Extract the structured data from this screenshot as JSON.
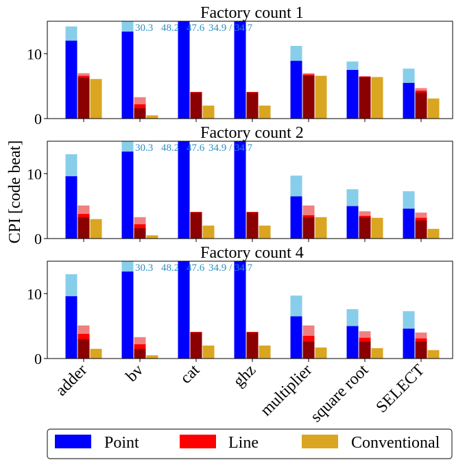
{
  "chart_data": {
    "type": "bar",
    "ylabel": "CPI [code beat]",
    "ylim": [
      0,
      15
    ],
    "yticks": [
      0,
      10
    ],
    "categories": [
      "adder",
      "bv",
      "cat",
      "ghz",
      "multiplier",
      "square root",
      "SELECT"
    ],
    "legend": {
      "placement": "bottom",
      "entries": [
        {
          "name": "Point",
          "color": "#0000ff"
        },
        {
          "name": "Line",
          "color": "#ff0000"
        },
        {
          "name": "Conventional",
          "color": "#daa520"
        }
      ]
    },
    "colors": {
      "point": "#0000ff",
      "point_light": "#87ceeb",
      "line": "#8b0000",
      "line_mid": "#ff0000",
      "line_light": "#f08080",
      "conventional": "#daa520",
      "annotation": "#2a8fc4"
    },
    "panels": [
      {
        "title": "Factory count 1",
        "annotations": [
          {
            "category": "bv",
            "text": "30.3"
          },
          {
            "category": "bv",
            "text": "48.2"
          },
          {
            "category": "cat",
            "text": "47.6"
          },
          {
            "category": "ghz",
            "text": "34.9 / 34.7"
          }
        ],
        "series": [
          {
            "name": "Point",
            "values": [
              12.0,
              13.4,
              15.0,
              15.0,
              8.9,
              7.5,
              5.5
            ],
            "upper": [
              14.2,
              15.0,
              15.0,
              15.0,
              11.2,
              8.8,
              7.7
            ]
          },
          {
            "name": "Line",
            "values": [
              6.3,
              1.6,
              4.0,
              4.0,
              6.6,
              6.4,
              4.0
            ],
            "mid": [
              6.6,
              2.2,
              4.1,
              4.1,
              6.8,
              6.5,
              4.3
            ],
            "upper": [
              7.0,
              3.3,
              4.1,
              4.1,
              7.0,
              6.5,
              4.7
            ]
          },
          {
            "name": "Conventional",
            "values": [
              6.1,
              0.5,
              2.0,
              2.0,
              6.6,
              6.4,
              3.1
            ]
          }
        ]
      },
      {
        "title": "Factory count 2",
        "annotations": [
          {
            "category": "bv",
            "text": "30.3"
          },
          {
            "category": "bv",
            "text": "48.2"
          },
          {
            "category": "cat",
            "text": "47.6"
          },
          {
            "category": "ghz",
            "text": "34.9 / 34.7"
          }
        ],
        "series": [
          {
            "name": "Point",
            "values": [
              9.6,
              13.4,
              15.0,
              15.0,
              6.5,
              5.0,
              4.6
            ],
            "upper": [
              13.0,
              15.0,
              15.0,
              15.0,
              9.7,
              7.6,
              7.3
            ]
          },
          {
            "name": "Line",
            "values": [
              3.3,
              1.6,
              4.0,
              4.0,
              3.3,
              3.3,
              2.8
            ],
            "mid": [
              3.8,
              2.2,
              4.1,
              4.1,
              3.6,
              3.5,
              3.2
            ],
            "upper": [
              5.1,
              3.3,
              4.1,
              4.1,
              5.1,
              4.2,
              4.0
            ]
          },
          {
            "name": "Conventional",
            "values": [
              3.0,
              0.5,
              2.0,
              2.0,
              3.3,
              3.2,
              1.5
            ]
          }
        ]
      },
      {
        "title": "Factory count 4",
        "annotations": [
          {
            "category": "bv",
            "text": "30.3"
          },
          {
            "category": "bv",
            "text": "48.2"
          },
          {
            "category": "cat",
            "text": "47.6"
          },
          {
            "category": "ghz",
            "text": "34.9 / 34.7"
          }
        ],
        "series": [
          {
            "name": "Point",
            "values": [
              9.6,
              13.4,
              15.0,
              15.0,
              6.5,
              5.0,
              4.6
            ],
            "upper": [
              13.0,
              15.0,
              15.0,
              15.0,
              9.7,
              7.6,
              7.3
            ]
          },
          {
            "name": "Line",
            "values": [
              3.0,
              1.5,
              4.0,
              4.0,
              2.6,
              2.6,
              2.6
            ],
            "mid": [
              3.8,
              2.2,
              4.1,
              4.1,
              3.5,
              3.2,
              3.1
            ],
            "upper": [
              5.1,
              3.3,
              4.1,
              4.1,
              5.1,
              4.2,
              4.0
            ]
          },
          {
            "name": "Conventional",
            "values": [
              1.5,
              0.5,
              2.0,
              2.0,
              1.7,
              1.6,
              1.3
            ]
          }
        ]
      }
    ]
  }
}
